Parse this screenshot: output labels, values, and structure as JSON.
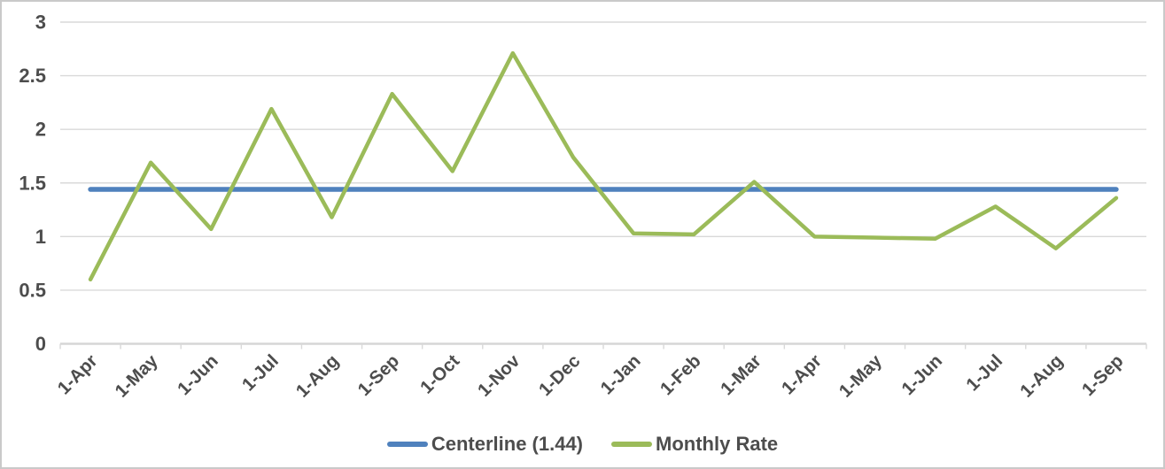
{
  "chart_data": {
    "type": "line",
    "title": "",
    "categories": [
      "1-Apr",
      "1-May",
      "1-Jun",
      "1-Jul",
      "1-Aug",
      "1-Sep",
      "1-Oct",
      "1-Nov",
      "1-Dec",
      "1-Jan",
      "1-Feb",
      "1-Mar",
      "1-Apr",
      "1-May",
      "1-Jun",
      "1-Jul",
      "1-Aug",
      "1-Sep"
    ],
    "series": [
      {
        "name": "Centerline (1.44)",
        "kind": "constant",
        "value": 1.44,
        "color": "#4F81BD",
        "stroke_width": 5.5
      },
      {
        "name": "Monthly Rate",
        "kind": "values",
        "values": [
          0.6,
          1.69,
          1.07,
          2.19,
          1.18,
          2.33,
          1.61,
          2.71,
          1.74,
          1.03,
          1.02,
          1.51,
          1.0,
          0.99,
          0.98,
          1.28,
          0.89,
          1.36
        ],
        "color": "#9BBB59",
        "stroke_width": 4.5
      }
    ],
    "xlabel": "",
    "ylabel": "",
    "ylim": [
      0,
      3
    ],
    "yticks": [
      0,
      0.5,
      1,
      1.5,
      2,
      2.5,
      3
    ],
    "ytick_labels": [
      "0",
      "0.5",
      "1",
      "1.5",
      "2",
      "2.5",
      "3"
    ],
    "grid": true,
    "legend_position": "bottom-center",
    "colors": {
      "grid_line": "#D9D9D9",
      "axis_line": "#D6D6D6",
      "tick_mark": "#D9D9D9",
      "label_text": "#4D4D4D",
      "background": "#FFFFFF",
      "frame_border": "#C9C9C9"
    }
  }
}
